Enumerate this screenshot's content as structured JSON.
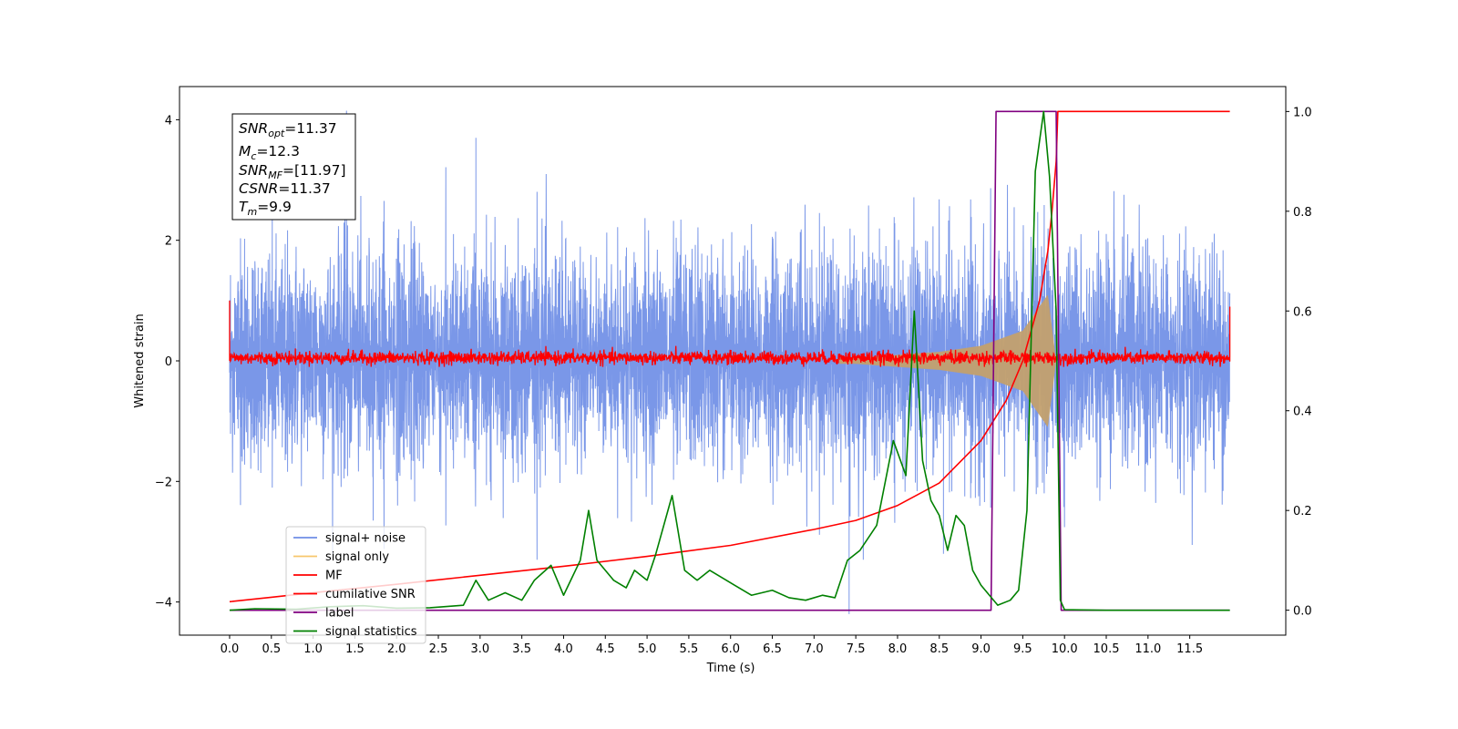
{
  "chart_data": {
    "type": "line",
    "xlabel": "Time (s)",
    "ylabel": "Whitened strain",
    "xlim": [
      -0.6,
      12.65
    ],
    "ylim": [
      -4.55,
      4.55
    ],
    "y2lim": [
      -0.05,
      1.05
    ],
    "x_ticks": [
      0.0,
      0.5,
      1.0,
      1.5,
      2.0,
      2.5,
      3.0,
      3.5,
      4.0,
      4.5,
      5.0,
      5.5,
      6.0,
      6.5,
      7.0,
      7.5,
      8.0,
      8.5,
      9.0,
      9.5,
      10.0,
      10.5,
      11.0,
      11.5
    ],
    "x_tick_labels": [
      "0.0",
      "0.5",
      "1.0",
      "1.5",
      "2.0",
      "2.5",
      "3.0",
      "3.5",
      "4.0",
      "4.5",
      "5.0",
      "5.5",
      "6.0",
      "6.5",
      "7.0",
      "7.5",
      "8.0",
      "8.5",
      "9.0",
      "9.5",
      "10.0",
      "10.5",
      "11.0",
      "11.5"
    ],
    "y_ticks": [
      -4,
      -2,
      0,
      2,
      4
    ],
    "y_tick_labels": [
      "−4",
      "−2",
      "0",
      "2",
      "4"
    ],
    "y2_ticks": [
      0.0,
      0.2,
      0.4,
      0.6,
      0.8,
      1.0
    ],
    "y2_tick_labels": [
      "0.0",
      "0.2",
      "0.4",
      "0.6",
      "0.8",
      "1.0"
    ],
    "grid": false,
    "legend_position": "lower-left",
    "series": [
      {
        "name": "signal+ noise",
        "axis": "left",
        "color": "#6f8ee6",
        "description_points": {
          "t_start": 0.0,
          "t_end": 11.98,
          "envelope_typical": [
            -2.0,
            2.3
          ],
          "peaks": [
            [
              1.4,
              4.15
            ],
            [
              2.95,
              3.7
            ],
            [
              7.42,
              -4.2
            ],
            [
              8.55,
              -3.2
            ]
          ]
        }
      },
      {
        "name": "signal only",
        "axis": "left",
        "color": "#f7c66b",
        "description_points": {
          "t_start": 0.0,
          "t_end": 9.9,
          "amplitude_envelope": [
            [
              0.0,
              0.0
            ],
            [
              7.5,
              0.05
            ],
            [
              8.5,
              0.15
            ],
            [
              9.0,
              0.25
            ],
            [
              9.5,
              0.5
            ],
            [
              9.8,
              1.1
            ],
            [
              9.9,
              0.0
            ]
          ]
        }
      },
      {
        "name": "MF",
        "axis": "left",
        "color": "#ff0000",
        "description_points": {
          "t_start": 0.0,
          "t_end": 11.98,
          "baseline": 0.0,
          "noise_band": [
            -0.1,
            0.2
          ],
          "edge_spikes": [
            [
              0.0,
              1.0
            ],
            [
              11.98,
              0.9
            ]
          ]
        }
      },
      {
        "name": "cumilative SNR",
        "axis": "right",
        "color": "#ff0000",
        "x": [
          0.0,
          0.5,
          1.0,
          2.0,
          3.0,
          4.0,
          5.0,
          6.0,
          7.0,
          7.5,
          8.0,
          8.5,
          9.0,
          9.3,
          9.5,
          9.7,
          9.8,
          9.85,
          9.9,
          9.92,
          10.0,
          11.0,
          11.98
        ],
        "values": [
          0.017,
          0.026,
          0.035,
          0.052,
          0.07,
          0.088,
          0.108,
          0.13,
          0.162,
          0.18,
          0.21,
          0.255,
          0.34,
          0.42,
          0.5,
          0.62,
          0.72,
          0.8,
          0.9,
          1.0,
          1.0,
          1.0,
          1.0
        ]
      },
      {
        "name": "label",
        "axis": "right",
        "color": "#800080",
        "x": [
          0.0,
          9.12,
          9.18,
          9.9,
          9.96,
          11.98
        ],
        "values": [
          0.0,
          0.0,
          1.0,
          1.0,
          0.0,
          0.0
        ]
      },
      {
        "name": "signal statistics",
        "axis": "right",
        "color": "#008000",
        "x": [
          0.0,
          0.3,
          0.8,
          1.2,
          1.6,
          2.0,
          2.4,
          2.8,
          2.95,
          3.1,
          3.3,
          3.5,
          3.65,
          3.85,
          4.0,
          4.2,
          4.3,
          4.4,
          4.5,
          4.6,
          4.75,
          4.85,
          5.0,
          5.1,
          5.3,
          5.45,
          5.6,
          5.75,
          5.9,
          6.05,
          6.25,
          6.5,
          6.7,
          6.9,
          7.1,
          7.25,
          7.4,
          7.55,
          7.75,
          7.95,
          8.1,
          8.2,
          8.3,
          8.4,
          8.5,
          8.6,
          8.7,
          8.8,
          8.9,
          9.0,
          9.2,
          9.35,
          9.45,
          9.55,
          9.65,
          9.75,
          9.82,
          9.9,
          9.95,
          10.0,
          10.5,
          11.0,
          11.5,
          11.98
        ],
        "values": [
          0.0,
          0.003,
          0.002,
          0.007,
          0.009,
          0.004,
          0.005,
          0.01,
          0.06,
          0.02,
          0.035,
          0.02,
          0.06,
          0.09,
          0.03,
          0.1,
          0.2,
          0.1,
          0.08,
          0.06,
          0.045,
          0.08,
          0.06,
          0.11,
          0.23,
          0.08,
          0.06,
          0.08,
          0.065,
          0.05,
          0.03,
          0.04,
          0.025,
          0.02,
          0.03,
          0.025,
          0.1,
          0.12,
          0.17,
          0.34,
          0.27,
          0.6,
          0.3,
          0.22,
          0.19,
          0.12,
          0.19,
          0.17,
          0.08,
          0.05,
          0.01,
          0.02,
          0.04,
          0.2,
          0.88,
          1.0,
          0.87,
          0.6,
          0.02,
          0.001,
          0.0,
          0.0,
          0.0,
          0.0
        ]
      }
    ],
    "annotation": {
      "snr_opt_label": "SNR",
      "snr_opt_sub": "opt",
      "snr_opt_value": "=11.37",
      "mc_label": "M",
      "mc_sub": "c",
      "mc_value": "=12.3",
      "snr_mf_label": "SNR",
      "snr_mf_sub": "MF",
      "snr_mf_value": "=[11.97]",
      "csnr_label": "CSNR",
      "csnr_value": "=11.37",
      "tm_label": "T",
      "tm_sub": "m",
      "tm_value": "=9.9"
    }
  }
}
